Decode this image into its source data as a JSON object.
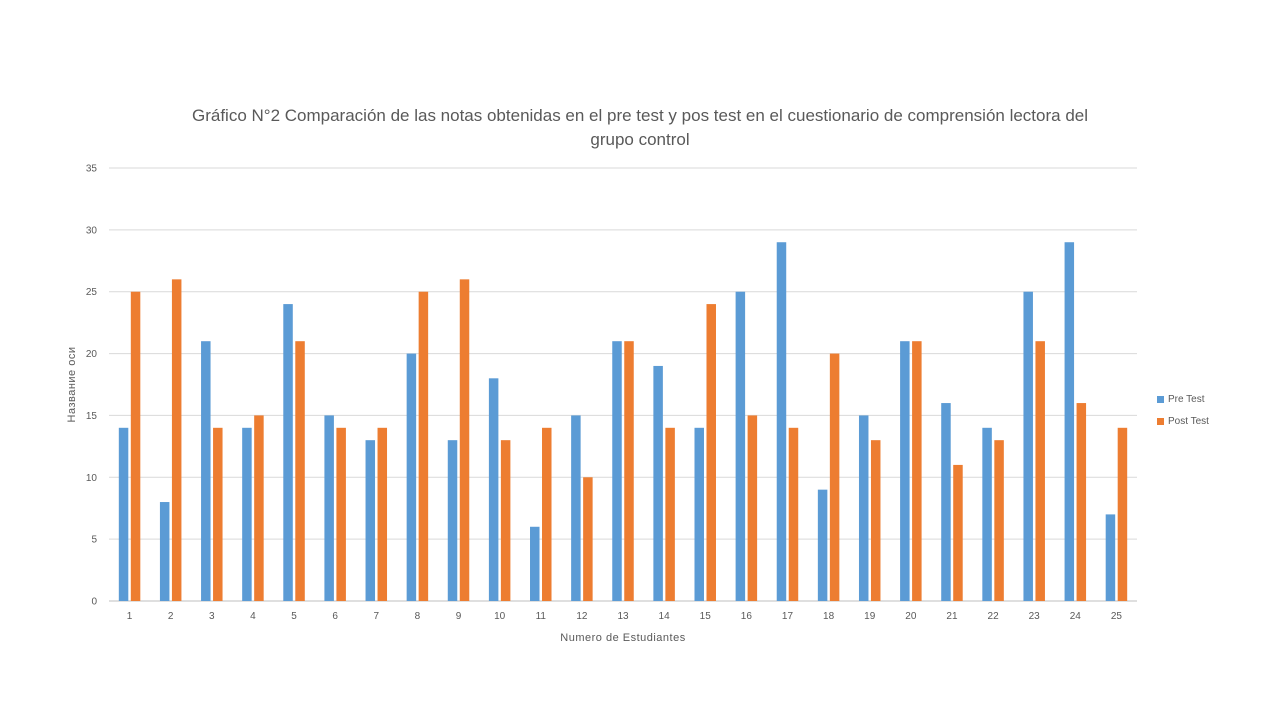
{
  "chart_data": {
    "type": "bar",
    "title_line1": "Gráfico N°2 Comparación de las notas obtenidas en el pre test y pos test en el cuestionario de comprensión lectora del",
    "title_line2": "grupo control",
    "xlabel": "Numero de Estudiantes",
    "ylabel": "Название оси",
    "ylim": [
      0,
      35
    ],
    "yticks": [
      "0",
      "5",
      "10",
      "15",
      "20",
      "25",
      "30",
      "35"
    ],
    "grid": true,
    "legend_position": "right",
    "categories": [
      "1",
      "2",
      "3",
      "4",
      "5",
      "6",
      "7",
      "8",
      "9",
      "10",
      "11",
      "12",
      "13",
      "14",
      "15",
      "16",
      "17",
      "18",
      "19",
      "20",
      "21",
      "22",
      "23",
      "24",
      "25"
    ],
    "series": [
      {
        "name": "Pre Test",
        "color": "#5B9BD5",
        "values": [
          14,
          8,
          21,
          14,
          24,
          15,
          13,
          20,
          13,
          18,
          6,
          15,
          21,
          19,
          14,
          25,
          29,
          9,
          15,
          21,
          16,
          14,
          25,
          29,
          7
        ]
      },
      {
        "name": "Post Test",
        "color": "#ED7D31",
        "values": [
          25,
          26,
          14,
          15,
          21,
          14,
          14,
          25,
          26,
          13,
          14,
          10,
          21,
          14,
          24,
          15,
          14,
          20,
          13,
          21,
          11,
          13,
          21,
          16,
          14
        ]
      }
    ]
  }
}
